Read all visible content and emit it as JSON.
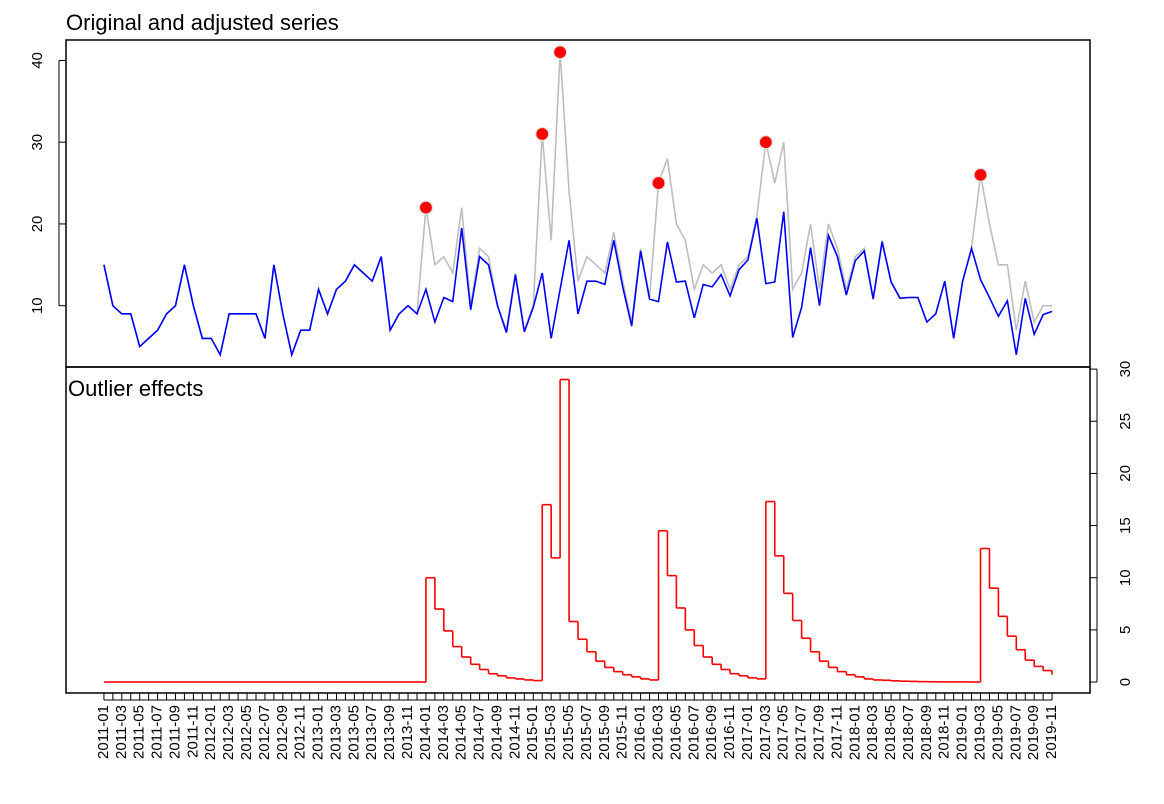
{
  "chart_data": [
    {
      "type": "line",
      "title": "Original and adjusted series",
      "y_axis_side": "left",
      "ylim": [
        2.5,
        42.5
      ],
      "yticks": [
        10,
        20,
        30,
        40
      ],
      "series": [
        {
          "color": "#bebebe",
          "style": "line",
          "values": [
            15,
            10,
            9,
            9,
            5,
            6,
            7,
            9,
            10,
            15,
            10,
            6,
            6,
            4,
            9,
            9,
            9,
            9,
            6,
            15,
            9,
            4,
            7,
            7,
            12,
            9,
            12,
            13,
            15,
            14,
            13,
            16,
            7,
            9,
            10,
            9,
            22,
            15,
            16,
            14,
            22,
            10,
            17,
            16,
            10,
            7,
            14,
            7,
            10,
            31,
            18,
            41,
            24,
            13,
            16,
            15,
            14,
            19,
            13,
            8,
            17,
            11,
            25,
            28,
            20,
            18,
            12,
            15,
            14,
            15,
            12,
            15,
            16,
            21,
            30,
            25,
            30,
            12,
            14,
            20,
            12,
            20,
            17,
            12,
            16,
            17,
            11,
            18,
            13,
            11,
            11,
            11,
            8,
            9,
            13,
            6,
            13,
            17,
            26,
            20,
            15,
            15,
            7,
            13,
            8,
            10,
            10
          ]
        },
        {
          "color": "#0000ff",
          "style": "line",
          "values": [
            15,
            10,
            9,
            9,
            5,
            6,
            7,
            9,
            10,
            15,
            10,
            6,
            6,
            4,
            9,
            9,
            9,
            9,
            6,
            15,
            9,
            4,
            7,
            7,
            12,
            9,
            12,
            13,
            15,
            14,
            13,
            16,
            7,
            9,
            10,
            9,
            12,
            8,
            11,
            10.5,
            19.5,
            9.5,
            16,
            15,
            10,
            6.7,
            13.8,
            6.8,
            9.8,
            14,
            6,
            12,
            18,
            9,
            13,
            13,
            12.6,
            18,
            12.3,
            7.5,
            16.7,
            10.8,
            10.5,
            17.8,
            12.9,
            13,
            8.5,
            12.6,
            12.3,
            13.8,
            11.2,
            14.4,
            15.6,
            20.7,
            12.7,
            12.9,
            21.5,
            6.1,
            9.8,
            17.1,
            10,
            18.6,
            16,
            11.3,
            15.5,
            16.7,
            10.8,
            17.8,
            12.9,
            10.9,
            11,
            11,
            8,
            9,
            13,
            6,
            13,
            17,
            13.2,
            11,
            8.7,
            10.6,
            4,
            10.9,
            6.5,
            8.9,
            9.3
          ]
        },
        {
          "color": "#ff0000",
          "style": "points",
          "values": [
            null,
            null,
            null,
            null,
            null,
            null,
            null,
            null,
            null,
            null,
            null,
            null,
            null,
            null,
            null,
            null,
            null,
            null,
            null,
            null,
            null,
            null,
            null,
            null,
            null,
            null,
            null,
            null,
            null,
            null,
            null,
            null,
            null,
            null,
            null,
            null,
            22,
            null,
            null,
            null,
            null,
            null,
            null,
            null,
            null,
            null,
            null,
            null,
            null,
            31,
            null,
            41,
            null,
            null,
            null,
            null,
            null,
            null,
            null,
            null,
            null,
            null,
            25,
            null,
            null,
            null,
            null,
            null,
            null,
            null,
            null,
            null,
            null,
            null,
            30,
            null,
            null,
            null,
            null,
            null,
            null,
            null,
            null,
            null,
            null,
            null,
            null,
            null,
            null,
            null,
            null,
            null,
            null,
            null,
            null,
            null,
            null,
            null,
            26,
            null,
            null,
            null,
            null,
            null,
            null,
            null,
            null
          ]
        }
      ]
    },
    {
      "type": "step",
      "title": "Outlier effects",
      "y_axis_side": "right",
      "color": "#ff0000",
      "ylim": [
        -1.05,
        30.2
      ],
      "yticks": [
        0,
        5,
        10,
        15,
        20,
        25,
        30
      ],
      "categories": [
        "2011-01",
        null,
        "2011-03",
        null,
        "2011-05",
        null,
        "2011-07",
        null,
        "2011-09",
        null,
        "2011-11",
        null,
        "2012-01",
        null,
        "2012-03",
        null,
        "2012-05",
        null,
        "2012-07",
        null,
        "2012-09",
        null,
        "2012-11",
        null,
        "2013-01",
        null,
        "2013-03",
        null,
        "2013-05",
        null,
        "2013-07",
        null,
        "2013-09",
        null,
        "2013-11",
        null,
        "2014-01",
        null,
        "2014-03",
        null,
        "2014-05",
        null,
        "2014-07",
        null,
        "2014-09",
        null,
        "2014-11",
        null,
        "2015-01",
        null,
        "2015-03",
        null,
        "2015-05",
        null,
        "2015-07",
        null,
        "2015-09",
        null,
        "2015-11",
        null,
        "2016-01",
        null,
        "2016-03",
        null,
        "2016-05",
        null,
        "2016-07",
        null,
        "2016-09",
        null,
        "2016-11",
        null,
        "2017-01",
        null,
        "2017-03",
        null,
        "2017-05",
        null,
        "2017-07",
        null,
        "2017-09",
        null,
        "2017-11",
        null,
        "2018-01",
        null,
        "2018-03",
        null,
        "2018-05",
        null,
        "2018-07",
        null,
        "2018-09",
        null,
        "2018-11",
        null,
        "2019-01",
        null,
        "2019-03",
        null,
        "2019-05",
        null,
        "2019-07",
        null,
        "2019-09",
        null,
        "2019-11"
      ],
      "values": [
        0,
        0,
        0,
        0,
        0,
        0,
        0,
        0,
        0,
        0,
        0,
        0,
        0,
        0,
        0,
        0,
        0,
        0,
        0,
        0,
        0,
        0,
        0,
        0,
        0,
        0,
        0,
        0,
        0,
        0,
        0,
        0,
        0,
        0,
        0,
        0,
        10,
        7,
        4.9,
        3.4,
        2.4,
        1.7,
        1.2,
        0.8,
        0.6,
        0.4,
        0.3,
        0.2,
        0.14,
        17,
        11.9,
        29,
        5.8,
        4.1,
        2.9,
        2,
        1.4,
        1,
        0.7,
        0.5,
        0.3,
        0.2,
        14.5,
        10.2,
        7.1,
        5,
        3.5,
        2.4,
        1.7,
        1.2,
        0.8,
        0.6,
        0.4,
        0.3,
        17.3,
        12.1,
        8.5,
        5.9,
        4.2,
        2.9,
        2,
        1.4,
        1,
        0.7,
        0.5,
        0.3,
        0.2,
        0.17,
        0.12,
        0.08,
        0.06,
        0.04,
        0.03,
        0.02,
        0.01,
        0.01,
        0.01,
        0,
        12.8,
        9,
        6.3,
        4.4,
        3.1,
        2.1,
        1.5,
        1.1,
        0.7
      ]
    }
  ]
}
